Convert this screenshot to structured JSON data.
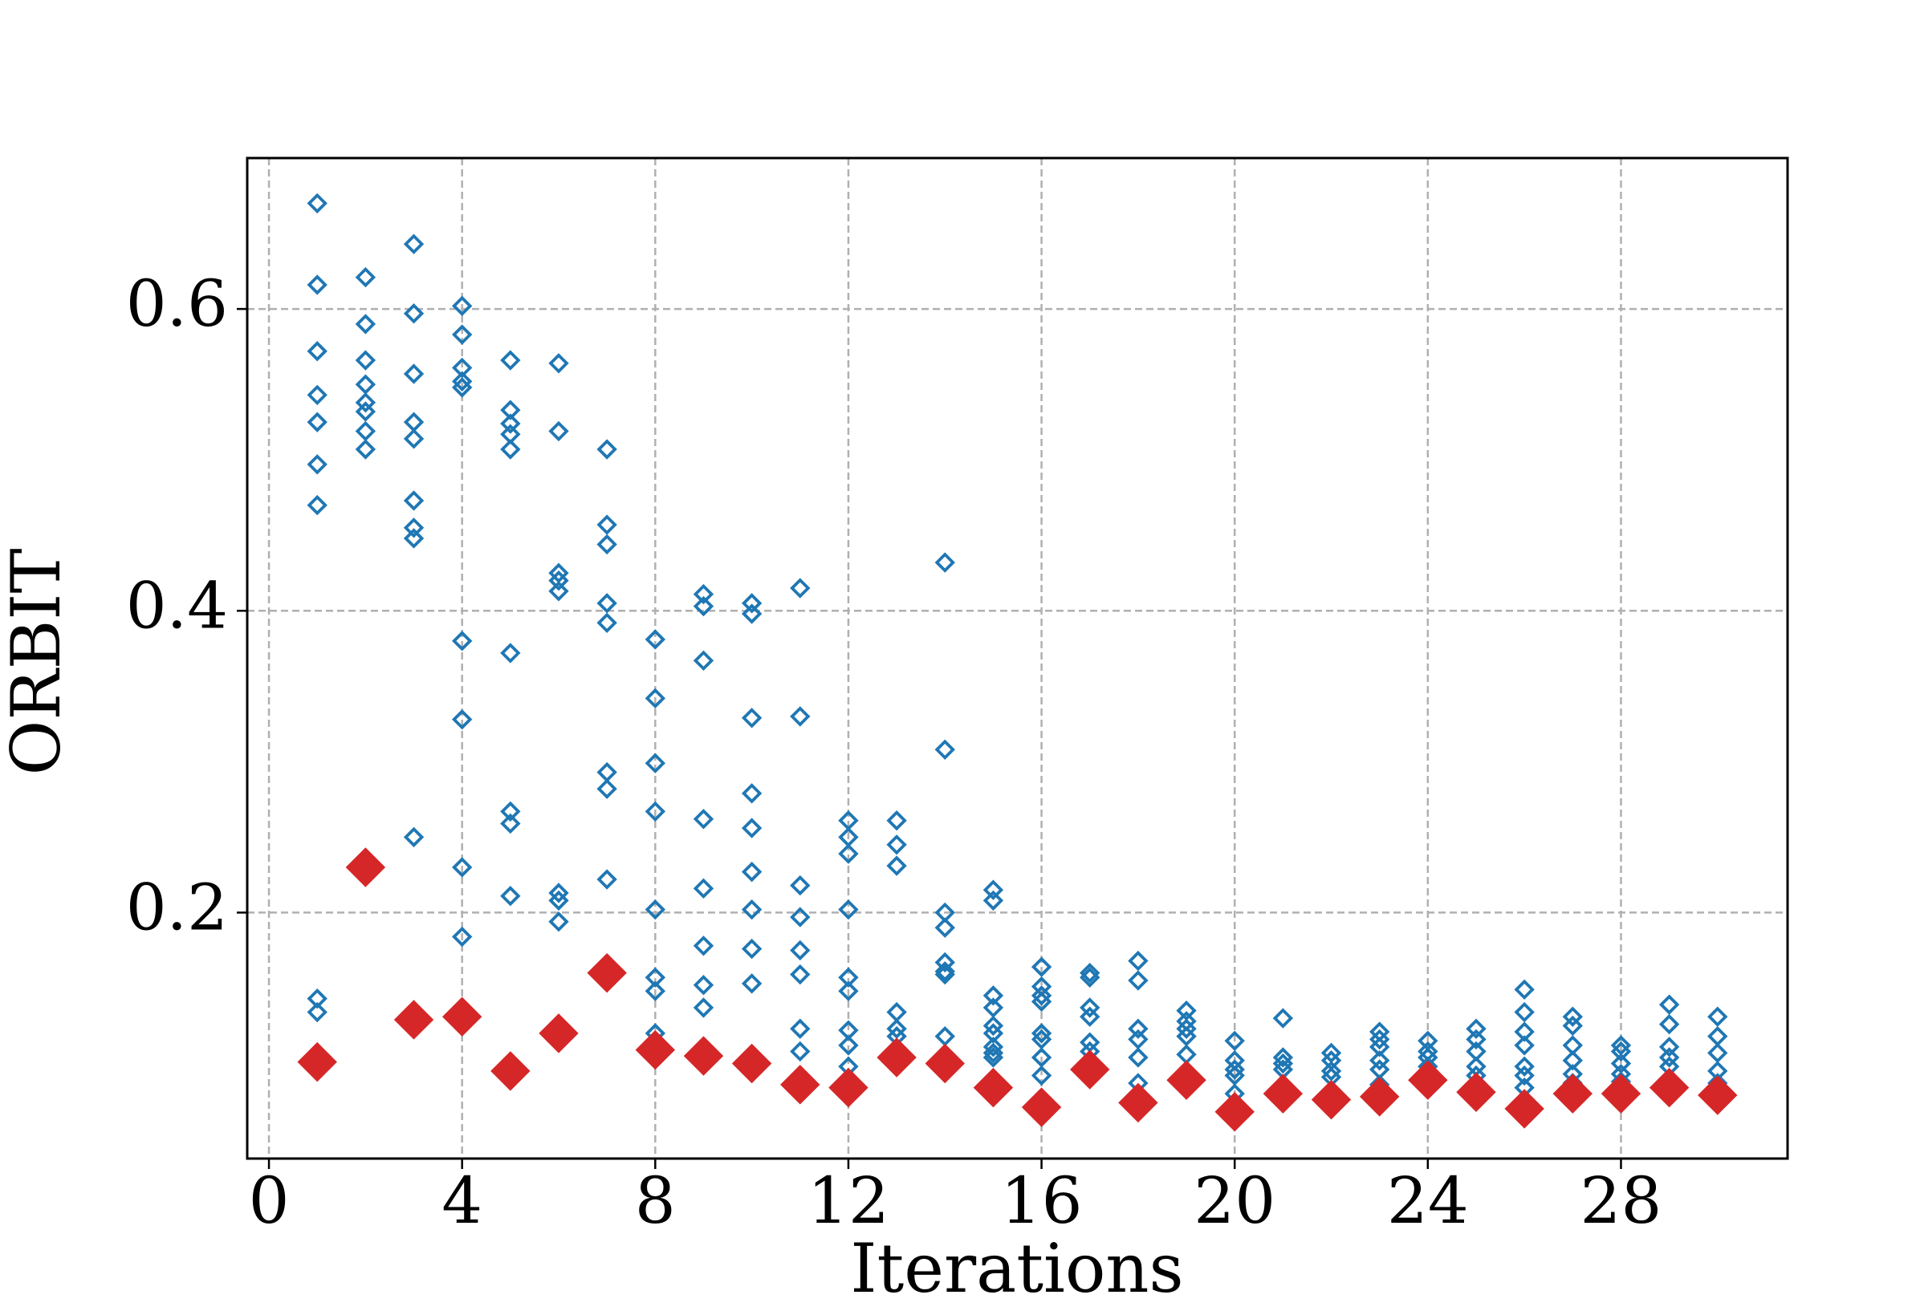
{
  "chart_data": {
    "type": "scatter",
    "x_label": "Iterations",
    "y_label": "ORBIT",
    "xlim": [
      -0.45,
      31.45
    ],
    "ylim": [
      0.037,
      0.7
    ],
    "xticks": [
      0,
      4,
      8,
      12,
      16,
      20,
      24,
      28
    ],
    "yticks": [
      0.2,
      0.4,
      0.6
    ],
    "grid": true,
    "series": [
      {
        "color": "#1f77b4",
        "marker": "diamond",
        "filled": false,
        "x": [
          1,
          1,
          1,
          1,
          1,
          1,
          1,
          1,
          1,
          2,
          2,
          2,
          2,
          2,
          2,
          2,
          2,
          3,
          3,
          3,
          3,
          3,
          3,
          3,
          3,
          3,
          4,
          4,
          4,
          4,
          4,
          4,
          4,
          4,
          4,
          5,
          5,
          5,
          5,
          5,
          5,
          5,
          5,
          5,
          6,
          6,
          6,
          6,
          6,
          6,
          6,
          6,
          7,
          7,
          7,
          7,
          7,
          7,
          7,
          7,
          8,
          8,
          8,
          8,
          8,
          8,
          8,
          8,
          9,
          9,
          9,
          9,
          9,
          9,
          9,
          9,
          10,
          10,
          10,
          10,
          10,
          10,
          10,
          10,
          10,
          11,
          11,
          11,
          11,
          11,
          11,
          11,
          11,
          12,
          12,
          12,
          12,
          12,
          12,
          12,
          12,
          12,
          13,
          13,
          13,
          13,
          13,
          13,
          14,
          14,
          14,
          14,
          14,
          14,
          14,
          14,
          15,
          15,
          15,
          15,
          15,
          15,
          15,
          15,
          15,
          16,
          16,
          16,
          16,
          16,
          16,
          16,
          16,
          17,
          17,
          17,
          17,
          17,
          17,
          18,
          18,
          18,
          18,
          18,
          18,
          19,
          19,
          19,
          19,
          19,
          20,
          20,
          20,
          20,
          20,
          21,
          21,
          21,
          21,
          22,
          22,
          22,
          22,
          23,
          23,
          23,
          23,
          23,
          23,
          24,
          24,
          24,
          24,
          25,
          25,
          25,
          25,
          25,
          26,
          26,
          26,
          26,
          26,
          26,
          26,
          27,
          27,
          27,
          27,
          27,
          27,
          28,
          28,
          28,
          28,
          28,
          29,
          29,
          29,
          29,
          29,
          29,
          30,
          30,
          30,
          30,
          30
        ],
        "values": [
          0.67,
          0.616,
          0.572,
          0.543,
          0.525,
          0.497,
          0.47,
          0.143,
          0.134,
          0.621,
          0.59,
          0.566,
          0.55,
          0.538,
          0.532,
          0.519,
          0.507,
          0.643,
          0.597,
          0.557,
          0.525,
          0.514,
          0.473,
          0.455,
          0.448,
          0.25,
          0.602,
          0.583,
          0.561,
          0.552,
          0.548,
          0.38,
          0.328,
          0.23,
          0.184,
          0.566,
          0.533,
          0.524,
          0.517,
          0.507,
          0.372,
          0.267,
          0.259,
          0.211,
          0.564,
          0.519,
          0.425,
          0.42,
          0.413,
          0.213,
          0.208,
          0.194,
          0.507,
          0.457,
          0.444,
          0.405,
          0.392,
          0.293,
          0.282,
          0.222,
          0.381,
          0.342,
          0.299,
          0.267,
          0.202,
          0.157,
          0.148,
          0.12,
          0.411,
          0.403,
          0.367,
          0.262,
          0.216,
          0.178,
          0.152,
          0.137,
          0.405,
          0.398,
          0.329,
          0.279,
          0.256,
          0.227,
          0.202,
          0.176,
          0.153,
          0.415,
          0.33,
          0.218,
          0.197,
          0.175,
          0.159,
          0.123,
          0.108,
          0.261,
          0.25,
          0.239,
          0.202,
          0.157,
          0.148,
          0.122,
          0.112,
          0.098,
          0.261,
          0.245,
          0.231,
          0.134,
          0.123,
          0.118,
          0.432,
          0.308,
          0.2,
          0.19,
          0.167,
          0.161,
          0.159,
          0.118,
          0.215,
          0.208,
          0.145,
          0.137,
          0.125,
          0.12,
          0.111,
          0.107,
          0.104,
          0.164,
          0.151,
          0.145,
          0.141,
          0.12,
          0.116,
          0.104,
          0.092,
          0.16,
          0.157,
          0.137,
          0.131,
          0.114,
          0.108,
          0.168,
          0.155,
          0.123,
          0.116,
          0.104,
          0.087,
          0.135,
          0.128,
          0.123,
          0.118,
          0.106,
          0.115,
          0.102,
          0.096,
          0.092,
          0.08,
          0.13,
          0.104,
          0.1,
          0.096,
          0.107,
          0.102,
          0.095,
          0.091,
          0.121,
          0.116,
          0.111,
          0.102,
          0.096,
          0.086,
          0.115,
          0.108,
          0.104,
          0.098,
          0.123,
          0.116,
          0.108,
          0.098,
          0.092,
          0.149,
          0.134,
          0.121,
          0.112,
          0.098,
          0.092,
          0.084,
          0.131,
          0.125,
          0.112,
          0.102,
          0.093,
          0.087,
          0.112,
          0.108,
          0.1,
          0.093,
          0.088,
          0.139,
          0.126,
          0.111,
          0.104,
          0.098,
          0.09,
          0.131,
          0.118,
          0.107,
          0.095,
          0.087
        ]
      },
      {
        "color": "#d62728",
        "marker": "diamond",
        "filled": true,
        "x": [
          1,
          2,
          3,
          4,
          5,
          6,
          7,
          8,
          9,
          10,
          11,
          12,
          13,
          14,
          15,
          16,
          17,
          18,
          19,
          20,
          21,
          22,
          23,
          24,
          25,
          26,
          27,
          28,
          29,
          30
        ],
        "values": [
          0.101,
          0.23,
          0.129,
          0.131,
          0.095,
          0.12,
          0.16,
          0.109,
          0.105,
          0.1,
          0.086,
          0.084,
          0.104,
          0.1,
          0.084,
          0.071,
          0.096,
          0.074,
          0.089,
          0.068,
          0.08,
          0.076,
          0.078,
          0.089,
          0.081,
          0.07,
          0.08,
          0.08,
          0.084,
          0.079
        ]
      }
    ]
  }
}
